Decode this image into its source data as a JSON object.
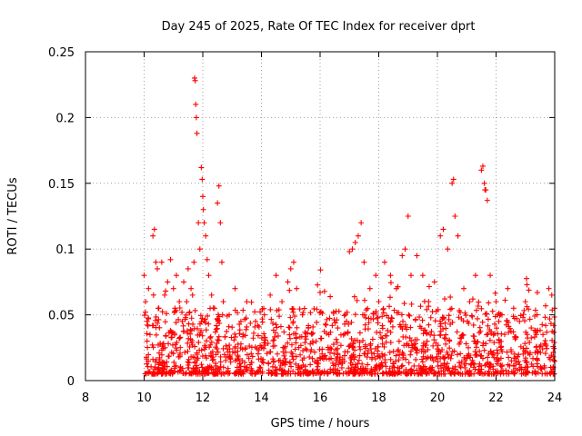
{
  "chart_data": {
    "type": "scatter",
    "title": "Day 245 of 2025, Rate Of TEC Index for receiver dprt",
    "xlabel": "GPS time / hours",
    "ylabel": "ROTI / TECUs",
    "xlim": [
      8,
      24
    ],
    "ylim": [
      0,
      0.25
    ],
    "xticks": [
      "8",
      "10",
      "12",
      "14",
      "16",
      "18",
      "20",
      "22",
      "24"
    ],
    "yticks": [
      "0",
      "0.05",
      "0.1",
      "0.15",
      "0.2",
      "0.25"
    ],
    "grid": true,
    "marker": "plus",
    "color": "#ff0000",
    "series": [
      {
        "points": [
          [
            10.0,
            0.08
          ],
          [
            10.05,
            0.06
          ],
          [
            10.1,
            0.045
          ],
          [
            10.1,
            0.03
          ],
          [
            10.15,
            0.07
          ],
          [
            10.2,
            0.035
          ],
          [
            10.3,
            0.11
          ],
          [
            10.35,
            0.115
          ],
          [
            10.4,
            0.09
          ],
          [
            10.45,
            0.085
          ],
          [
            10.5,
            0.055
          ],
          [
            10.6,
            0.09
          ],
          [
            10.7,
            0.065
          ],
          [
            10.8,
            0.075
          ],
          [
            10.9,
            0.092
          ],
          [
            11.0,
            0.07
          ],
          [
            11.05,
            0.055
          ],
          [
            11.1,
            0.08
          ],
          [
            11.2,
            0.06
          ],
          [
            11.3,
            0.045
          ],
          [
            11.35,
            0.075
          ],
          [
            11.45,
            0.06
          ],
          [
            11.5,
            0.085
          ],
          [
            11.6,
            0.07
          ],
          [
            11.65,
            0.065
          ],
          [
            11.7,
            0.09
          ],
          [
            11.72,
            0.23
          ],
          [
            11.74,
            0.228
          ],
          [
            11.76,
            0.21
          ],
          [
            11.78,
            0.2
          ],
          [
            11.8,
            0.188
          ],
          [
            11.85,
            0.12
          ],
          [
            11.9,
            0.1
          ],
          [
            11.95,
            0.162
          ],
          [
            11.98,
            0.153
          ],
          [
            12.0,
            0.14
          ],
          [
            12.02,
            0.13
          ],
          [
            12.05,
            0.12
          ],
          [
            12.1,
            0.11
          ],
          [
            12.15,
            0.092
          ],
          [
            12.2,
            0.08
          ],
          [
            12.3,
            0.065
          ],
          [
            12.4,
            0.055
          ],
          [
            12.5,
            0.135
          ],
          [
            12.55,
            0.148
          ],
          [
            12.6,
            0.12
          ],
          [
            12.65,
            0.09
          ],
          [
            12.7,
            0.06
          ],
          [
            12.9,
            0.05
          ],
          [
            13.1,
            0.07
          ],
          [
            13.3,
            0.045
          ],
          [
            13.5,
            0.06
          ],
          [
            13.8,
            0.045
          ],
          [
            14.1,
            0.05
          ],
          [
            14.3,
            0.065
          ],
          [
            14.5,
            0.08
          ],
          [
            14.7,
            0.06
          ],
          [
            14.9,
            0.075
          ],
          [
            15.0,
            0.085
          ],
          [
            15.1,
            0.09
          ],
          [
            15.2,
            0.07
          ],
          [
            15.4,
            0.05
          ],
          [
            15.6,
            0.04
          ],
          [
            16.0,
            0.067
          ],
          [
            16.3,
            0.035
          ],
          [
            16.6,
            0.04
          ],
          [
            16.9,
            0.045
          ],
          [
            17.0,
            0.098
          ],
          [
            17.1,
            0.1
          ],
          [
            17.2,
            0.105
          ],
          [
            17.3,
            0.11
          ],
          [
            17.4,
            0.12
          ],
          [
            17.5,
            0.09
          ],
          [
            17.7,
            0.07
          ],
          [
            17.9,
            0.08
          ],
          [
            18.0,
            0.06
          ],
          [
            18.2,
            0.09
          ],
          [
            18.4,
            0.08
          ],
          [
            18.6,
            0.07
          ],
          [
            18.8,
            0.095
          ],
          [
            18.9,
            0.1
          ],
          [
            19.0,
            0.125
          ],
          [
            19.1,
            0.08
          ],
          [
            19.3,
            0.095
          ],
          [
            19.5,
            0.08
          ],
          [
            19.7,
            0.06
          ],
          [
            19.9,
            0.075
          ],
          [
            20.1,
            0.11
          ],
          [
            20.2,
            0.115
          ],
          [
            20.35,
            0.1
          ],
          [
            20.5,
            0.15
          ],
          [
            20.55,
            0.153
          ],
          [
            20.6,
            0.125
          ],
          [
            20.7,
            0.11
          ],
          [
            20.9,
            0.07
          ],
          [
            21.1,
            0.06
          ],
          [
            21.3,
            0.08
          ],
          [
            21.5,
            0.16
          ],
          [
            21.55,
            0.163
          ],
          [
            21.6,
            0.15
          ],
          [
            21.62,
            0.145
          ],
          [
            21.65,
            0.145
          ],
          [
            21.7,
            0.137
          ],
          [
            21.8,
            0.08
          ],
          [
            22.0,
            0.06
          ],
          [
            22.2,
            0.05
          ],
          [
            22.4,
            0.07
          ],
          [
            22.6,
            0.055
          ],
          [
            22.8,
            0.045
          ],
          [
            23.0,
            0.06
          ],
          [
            23.2,
            0.04
          ],
          [
            23.4,
            0.05
          ],
          [
            23.6,
            0.035
          ],
          [
            23.8,
            0.07
          ],
          [
            23.9,
            0.065
          ],
          [
            24.0,
            0.055
          ]
        ]
      }
    ]
  }
}
